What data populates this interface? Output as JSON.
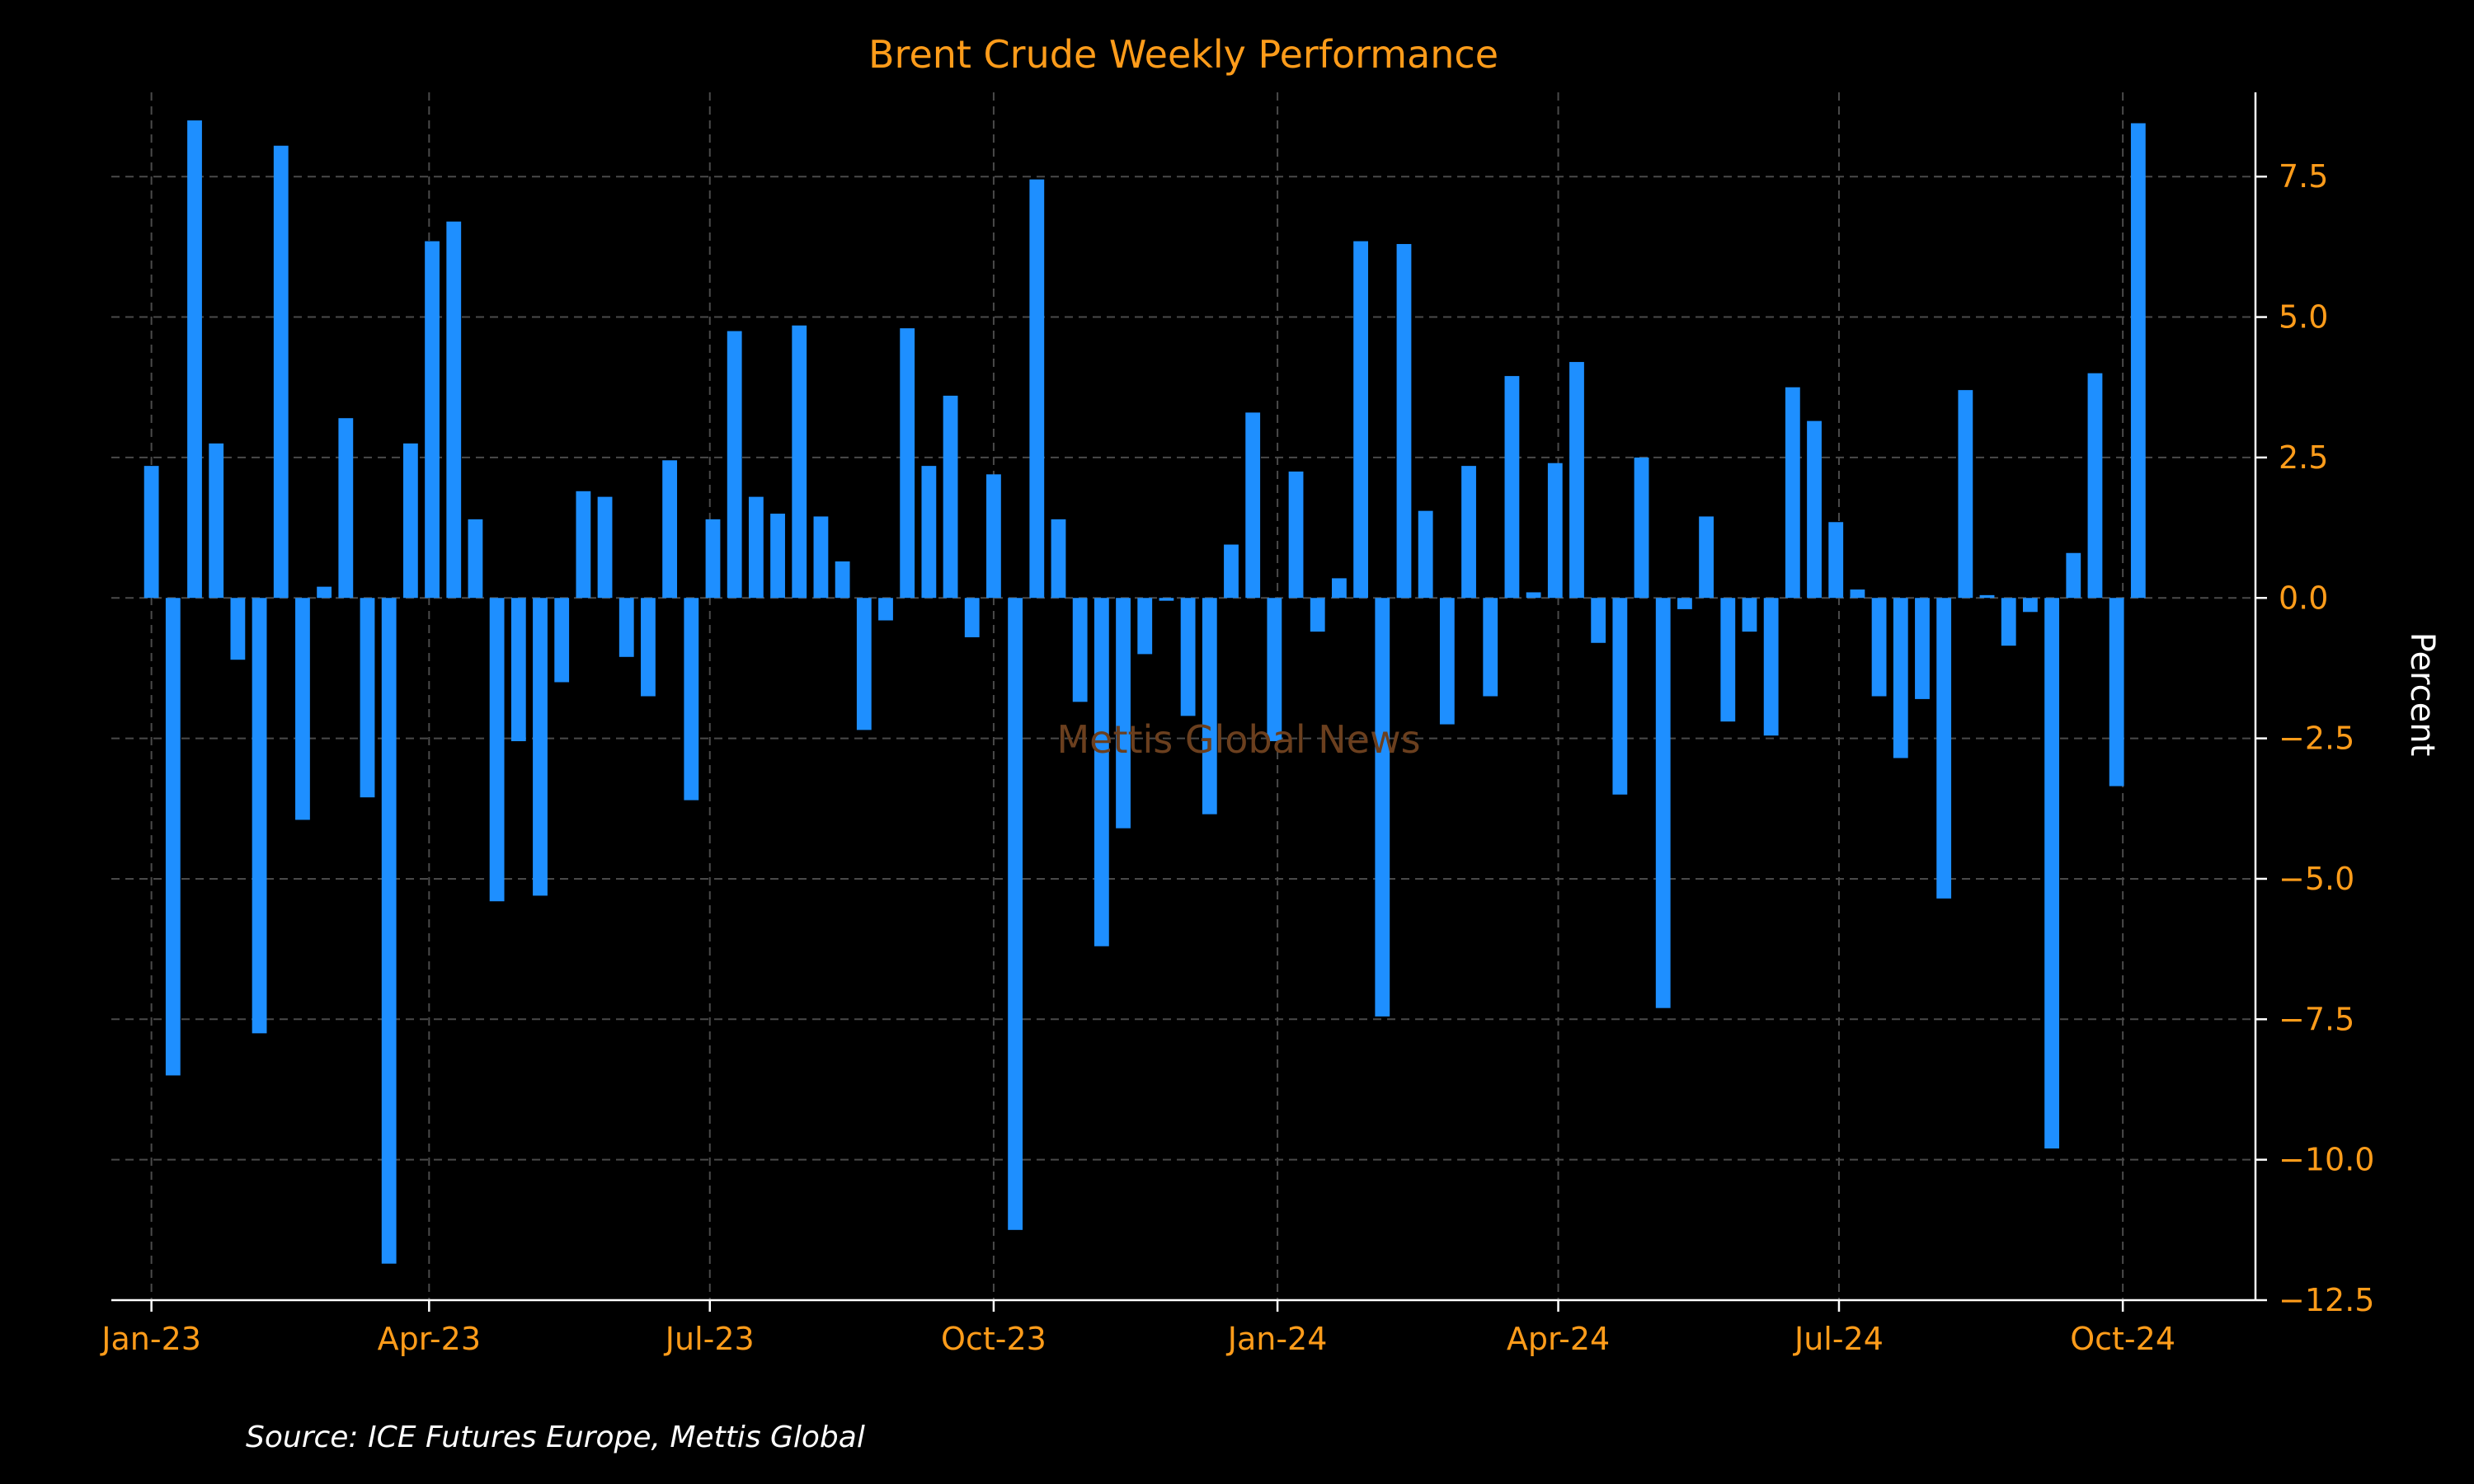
{
  "chart_data": {
    "type": "bar",
    "title": "Brent Crude Weekly Performance",
    "ylabel": "Percent",
    "xlabel": "",
    "ylim": [
      -12.5,
      9
    ],
    "yticks": [
      -12.5,
      -10.0,
      -7.5,
      -5.0,
      -2.5,
      0.0,
      2.5,
      5.0,
      7.5
    ],
    "ytick_labels": [
      "−12.5",
      "−10.0",
      "−7.5",
      "−5.0",
      "−2.5",
      "0.0",
      "2.5",
      "5.0",
      "7.5"
    ],
    "xlim": [
      "2022-12-19",
      "2024-11-13"
    ],
    "xticks": [
      "2023-01-01",
      "2023-04-01",
      "2023-07-01",
      "2023-10-01",
      "2024-01-01",
      "2024-04-01",
      "2024-07-01",
      "2024-10-01"
    ],
    "xtick_labels": [
      "Jan-23",
      "Apr-23",
      "Jul-23",
      "Oct-23",
      "Jan-24",
      "Apr-24",
      "Jul-24",
      "Oct-24"
    ],
    "first_bar_date": "2023-01-01",
    "bar_interval_days": 7,
    "grid": true,
    "y_axis_position": "right",
    "bar_color": "#1e8fff",
    "values": [
      2.35,
      -8.5,
      8.5,
      2.75,
      -1.1,
      -7.75,
      8.05,
      -3.95,
      0.2,
      3.2,
      -3.55,
      -11.85,
      2.75,
      6.35,
      6.7,
      1.4,
      -5.4,
      -2.55,
      -5.3,
      -1.5,
      1.9,
      1.8,
      -1.05,
      -1.75,
      2.45,
      -3.6,
      1.4,
      4.75,
      1.8,
      1.5,
      4.85,
      1.45,
      0.65,
      -2.35,
      -0.4,
      4.8,
      2.35,
      3.6,
      -0.7,
      2.2,
      -11.25,
      7.45,
      1.4,
      -1.85,
      -6.2,
      -4.1,
      -1.0,
      -0.05,
      -2.1,
      -3.85,
      0.95,
      3.3,
      -2.55,
      2.25,
      -0.6,
      0.35,
      6.35,
      -7.45,
      6.3,
      1.55,
      -2.25,
      2.35,
      -1.75,
      3.95,
      0.1,
      2.4,
      4.2,
      -0.8,
      -3.5,
      2.5,
      -7.3,
      -0.2,
      1.45,
      -2.2,
      -0.6,
      -2.45,
      3.75,
      3.15,
      1.35,
      0.15,
      -1.75,
      -2.85,
      -1.8,
      -5.35,
      3.7,
      0.05,
      -0.85,
      -0.25,
      -9.8,
      0.8,
      4.0,
      -3.35,
      8.45
    ]
  },
  "watermark": "Mettis Global News",
  "source": "Source: ICE Futures Europe, Mettis Global",
  "colors": {
    "background": "#000000",
    "bar": "#1e8fff",
    "text_accent": "#ff9c1a",
    "grid": "#4a4a4a"
  }
}
